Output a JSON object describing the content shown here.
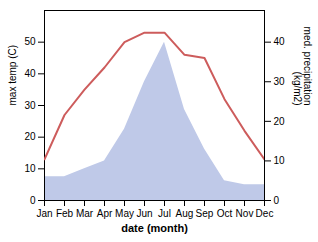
{
  "chart_data": {
    "type": "line",
    "categories": [
      "Jan",
      "Feb",
      "Mar",
      "Apr",
      "May",
      "Jun",
      "Jul",
      "Aug",
      "Sep",
      "Oct",
      "Nov",
      "Dec"
    ],
    "series": [
      {
        "type": "area",
        "axis": "y2",
        "color": "#bfc9e8",
        "values": [
          6,
          6,
          8,
          10,
          18,
          30,
          40,
          23,
          13,
          5,
          4,
          4
        ]
      },
      {
        "type": "line",
        "color": "#cd5c5c",
        "values": [
          13,
          27,
          35,
          42,
          50,
          53,
          53,
          46,
          45,
          32,
          22,
          13
        ]
      }
    ],
    "xlabel": "date (month)",
    "ylabel": "max temp (C)",
    "y2label": "med. precipitation\n(kg/m2)",
    "ylim": [
      0,
      60
    ],
    "yticks": [
      0,
      10,
      20,
      30,
      40,
      50
    ],
    "y2lim": [
      0,
      48
    ],
    "y2ticks": [
      0,
      10,
      20,
      30,
      40
    ]
  }
}
